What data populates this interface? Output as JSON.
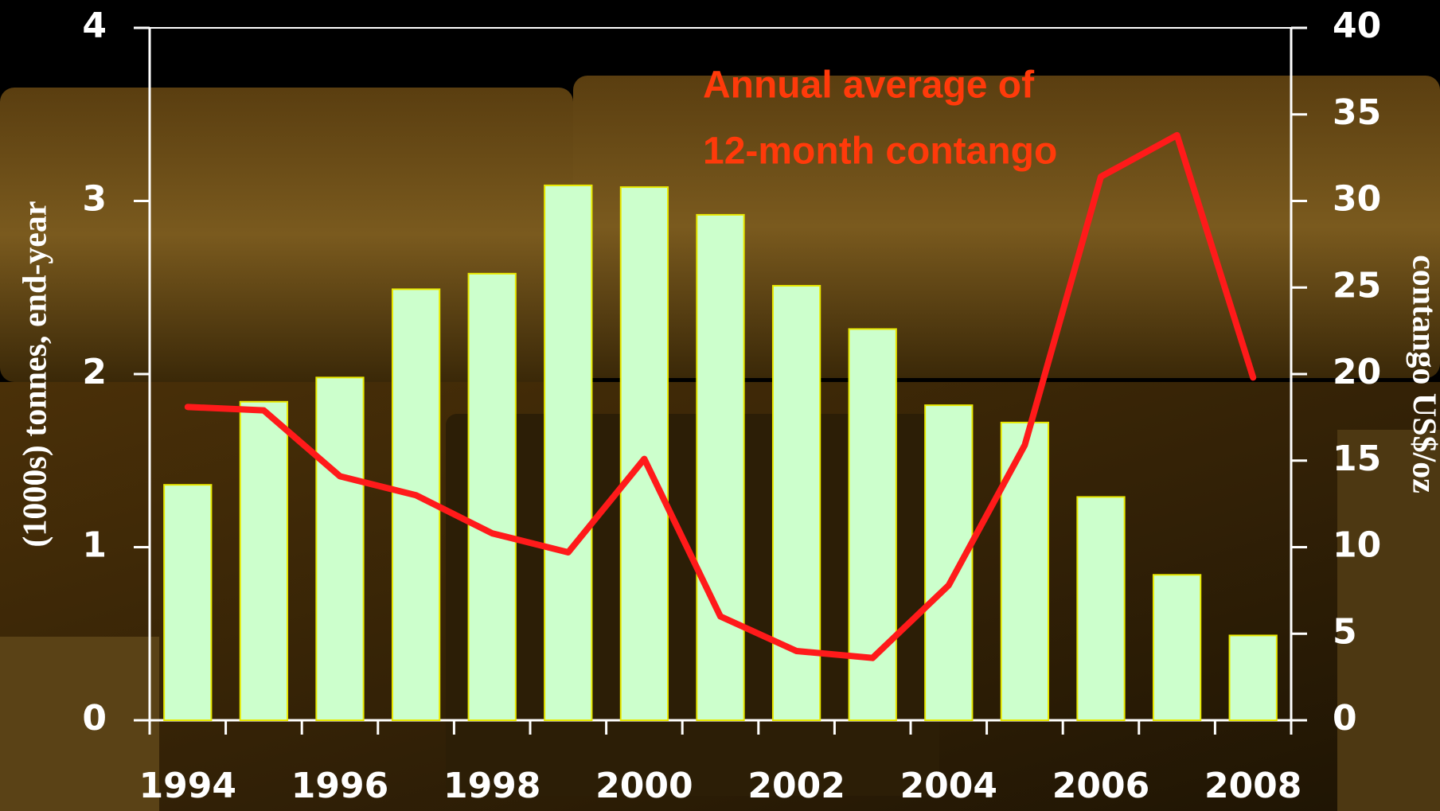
{
  "chart_data": {
    "type": "bar",
    "categories": [
      "1994",
      null,
      "1996",
      null,
      "1998",
      null,
      "2000",
      null,
      "2002",
      null,
      "2004",
      null,
      "2006",
      null,
      "2008"
    ],
    "series": [
      {
        "type": "bar",
        "color": "#ccffcc",
        "edgecolor": "#e8e800",
        "values": [
          1.36,
          1.84,
          1.98,
          2.49,
          2.58,
          3.09,
          3.08,
          2.92,
          2.51,
          2.26,
          1.82,
          1.72,
          1.29,
          0.84,
          0.49
        ]
      },
      {
        "type": "line",
        "color": "#ff1a1a",
        "axis": "y2",
        "values": [
          18.1,
          17.9,
          14.1,
          13.0,
          10.8,
          9.7,
          15.1,
          6.0,
          4.0,
          3.6,
          7.8,
          15.9,
          31.4,
          33.8,
          19.8
        ]
      }
    ],
    "ylabel": "(1000s) tonnes, end-year",
    "y2label": "contango US$/oz",
    "annotation": [
      "Annual average of",
      "12-month contango"
    ],
    "ylim": [
      0,
      4
    ],
    "yticks": [
      0,
      1,
      2,
      3,
      4
    ],
    "y2lim": [
      0,
      40
    ],
    "y2ticks": [
      0,
      5,
      10,
      15,
      20,
      25,
      30,
      35,
      40
    ]
  }
}
